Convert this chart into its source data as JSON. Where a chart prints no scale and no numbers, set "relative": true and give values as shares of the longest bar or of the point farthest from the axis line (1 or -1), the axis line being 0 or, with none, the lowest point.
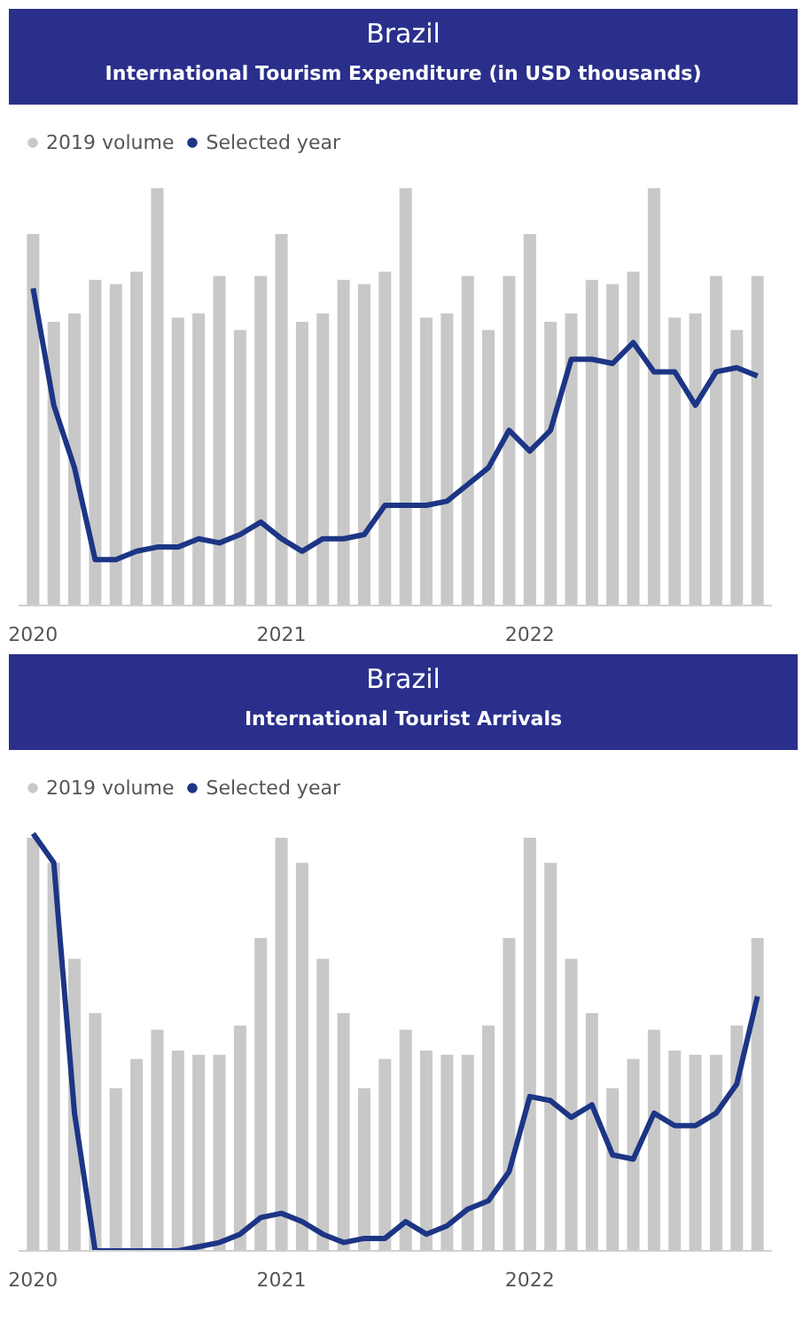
{
  "chart_data": [
    {
      "type": "bar",
      "title": "Brazil",
      "subtitle": "International Tourism Expenditure (in USD thousands)",
      "relative": true,
      "legend": "top left",
      "categories": [
        "2020",
        null,
        null,
        null,
        null,
        null,
        null,
        null,
        null,
        null,
        null,
        null,
        "2021",
        null,
        null,
        null,
        null,
        null,
        null,
        null,
        null,
        null,
        null,
        null,
        "2022",
        null,
        null,
        null,
        null,
        null,
        null,
        null,
        null,
        null,
        null,
        null
      ],
      "series": [
        {
          "name": "2019 volume",
          "color": "#c8c8c8",
          "values": [
            0.89,
            0.68,
            0.7,
            0.78,
            0.77,
            0.8,
            1.0,
            0.69,
            0.7,
            0.79,
            0.66,
            0.79,
            0.89,
            0.68,
            0.7,
            0.78,
            0.77,
            0.8,
            1.0,
            0.69,
            0.7,
            0.79,
            0.66,
            0.79,
            0.89,
            0.68,
            0.7,
            0.78,
            0.77,
            0.8,
            1.0,
            0.69,
            0.7,
            0.79,
            0.66,
            0.79
          ]
        },
        {
          "name": "Selected year",
          "type": "line",
          "color": "#1c3585",
          "values": [
            0.76,
            0.48,
            0.33,
            0.11,
            0.11,
            0.13,
            0.14,
            0.14,
            0.16,
            0.15,
            0.17,
            0.2,
            0.16,
            0.13,
            0.16,
            0.16,
            0.17,
            0.24,
            0.24,
            0.24,
            0.25,
            0.29,
            0.33,
            0.42,
            0.37,
            0.42,
            0.59,
            0.59,
            0.58,
            0.63,
            0.56,
            0.56,
            0.48,
            0.56,
            0.57,
            0.55
          ]
        }
      ]
    },
    {
      "type": "bar",
      "title": "Brazil",
      "subtitle": "International Tourist Arrivals",
      "relative": true,
      "legend": "top left",
      "categories": [
        "2020",
        null,
        null,
        null,
        null,
        null,
        null,
        null,
        null,
        null,
        null,
        null,
        "2021",
        null,
        null,
        null,
        null,
        null,
        null,
        null,
        null,
        null,
        null,
        null,
        "2022",
        null,
        null,
        null,
        null,
        null,
        null,
        null,
        null,
        null,
        null,
        null
      ],
      "series": [
        {
          "name": "2019 volume",
          "color": "#c8c8c8",
          "values": [
            0.99,
            0.93,
            0.7,
            0.57,
            0.39,
            0.46,
            0.53,
            0.48,
            0.47,
            0.47,
            0.54,
            0.75,
            0.99,
            0.93,
            0.7,
            0.57,
            0.39,
            0.46,
            0.53,
            0.48,
            0.47,
            0.47,
            0.54,
            0.75,
            0.99,
            0.93,
            0.7,
            0.57,
            0.39,
            0.46,
            0.53,
            0.48,
            0.47,
            0.47,
            0.54,
            0.75
          ]
        },
        {
          "name": "Selected year",
          "type": "line",
          "color": "#1c3585",
          "values": [
            1.0,
            0.93,
            0.33,
            0.0,
            0.0,
            0.0,
            0.0,
            0.0,
            0.01,
            0.02,
            0.04,
            0.08,
            0.09,
            0.07,
            0.04,
            0.02,
            0.03,
            0.03,
            0.07,
            0.04,
            0.06,
            0.1,
            0.12,
            0.19,
            0.37,
            0.36,
            0.32,
            0.35,
            0.23,
            0.22,
            0.33,
            0.3,
            0.3,
            0.33,
            0.4,
            0.61
          ]
        }
      ]
    }
  ]
}
